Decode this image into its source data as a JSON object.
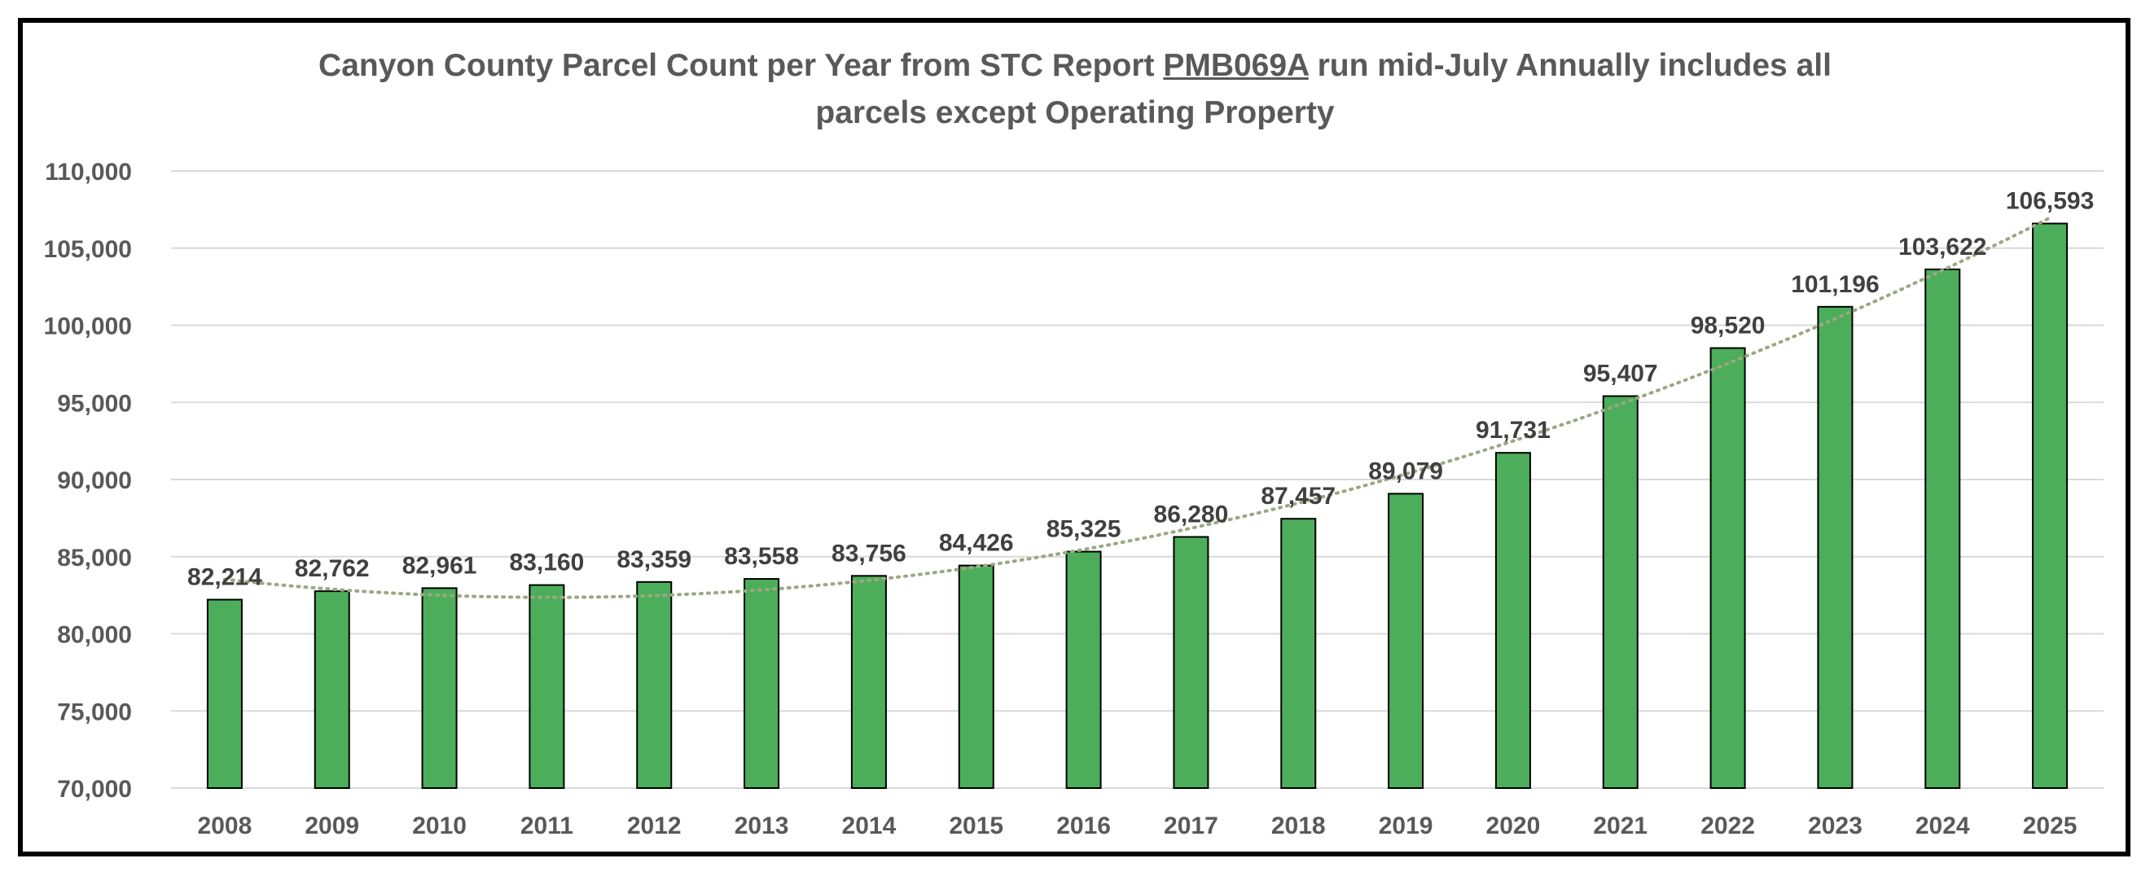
{
  "title": {
    "line1_prefix": "Canyon County Parcel Count per Year from STC Report ",
    "line1_code": "PMB069A",
    "line1_suffix": " run mid-July Annually includes all",
    "line2": "parcels except Operating Property"
  },
  "chart_data": {
    "type": "bar",
    "title": "Canyon County Parcel Count per Year from STC Report PMB069A run mid-July Annually includes all parcels except Operating Property",
    "categories": [
      "2008",
      "2009",
      "2010",
      "2011",
      "2012",
      "2013",
      "2014",
      "2015",
      "2016",
      "2017",
      "2018",
      "2019",
      "2020",
      "2021",
      "2022",
      "2023",
      "2024",
      "2025"
    ],
    "values": [
      82214,
      82762,
      82961,
      83160,
      83359,
      83558,
      83756,
      84426,
      85325,
      86280,
      87457,
      89079,
      91731,
      95407,
      98520,
      101196,
      103622,
      106593
    ],
    "value_labels": [
      "82,214",
      "82,762",
      "82,961",
      "83,160",
      "83,359",
      "83,558",
      "83,756",
      "84,426",
      "85,325",
      "86,280",
      "87,457",
      "89,079",
      "91,731",
      "95,407",
      "98,520",
      "101,196",
      "103,622",
      "106,593"
    ],
    "ylim": [
      70000,
      110000
    ],
    "yticks": [
      70000,
      75000,
      80000,
      85000,
      90000,
      95000,
      100000,
      105000,
      110000
    ],
    "ytick_labels": [
      "70,000",
      "75,000",
      "80,000",
      "85,000",
      "90,000",
      "95,000",
      "100,000",
      "105,000",
      "110,000"
    ],
    "xlabel": "",
    "ylabel": "",
    "grid": true,
    "legend": "none",
    "trendline": {
      "type": "polynomial",
      "style": "dotted"
    },
    "colors": {
      "bar": "#4cae5a",
      "bar_edge": "#000000",
      "trendline": "#9aa882",
      "grid": "#d9d9d9",
      "text": "#595959",
      "label": "#404040"
    }
  }
}
